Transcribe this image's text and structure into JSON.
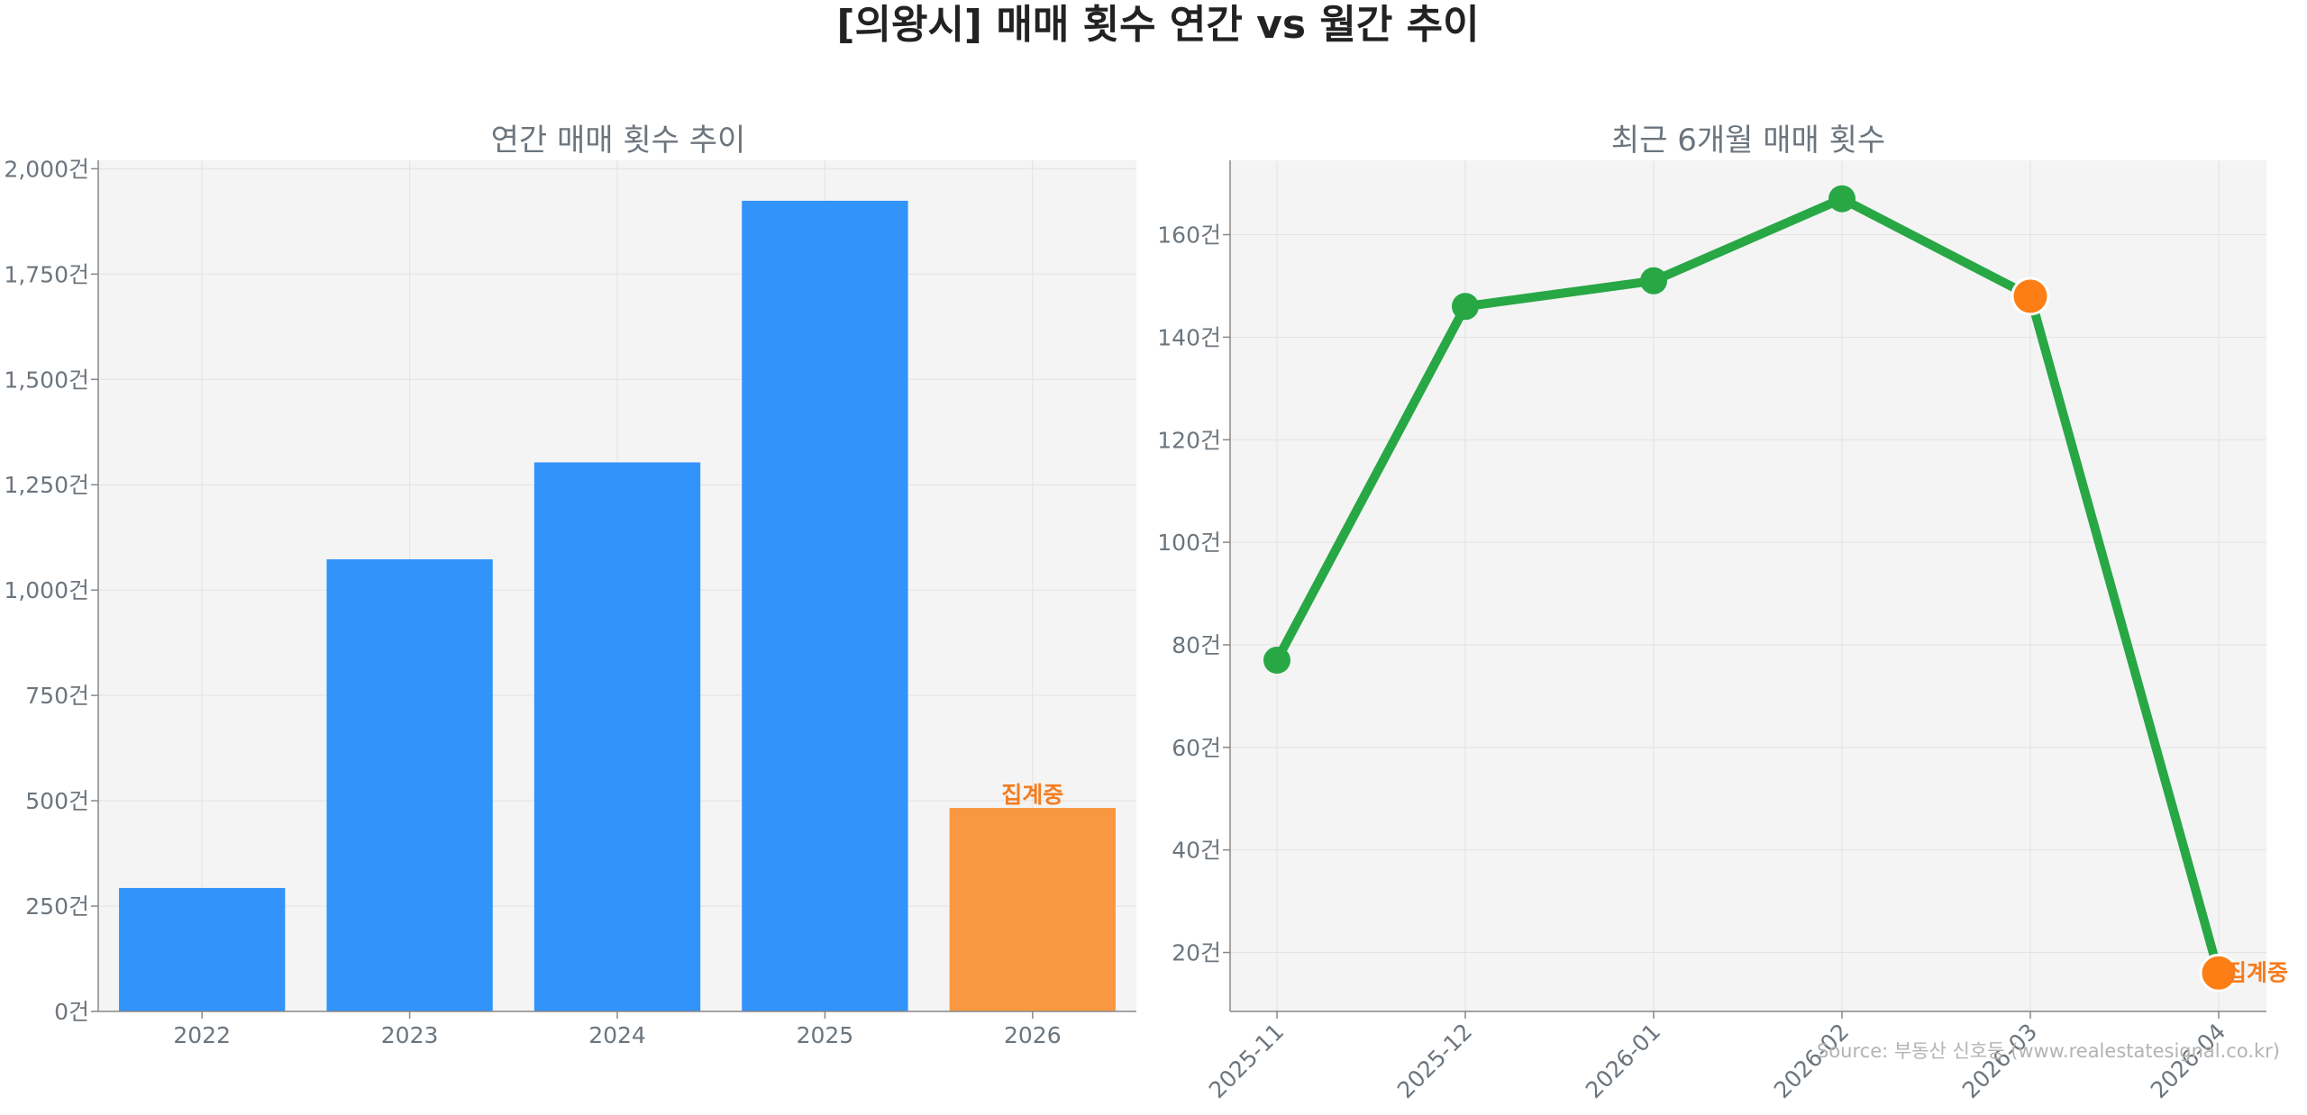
{
  "suptitle": "[의왕시] 매매 횟수 연간 vs 월간 추이",
  "source": "Source: 부동산 신호등 (www.realestatesignal.co.kr)",
  "colors": {
    "bar": "#3293fb",
    "bar_pending": "#f99841",
    "line": "#28a745",
    "pending_marker": "#fd7e14",
    "pending_text": "#f57c1f",
    "plot_bg": "#f4f4f4",
    "text_muted": "#6c757d",
    "title": "#222222"
  },
  "chart_data": [
    {
      "type": "bar",
      "title": "연간 매매 횟수 추이",
      "categories": [
        "2022",
        "2023",
        "2024",
        "2025",
        "2026"
      ],
      "values": [
        293,
        1073,
        1303,
        1924,
        483
      ],
      "pending_index": 4,
      "annotation": "집계중",
      "ylim": [
        0,
        2020
      ],
      "yticks": [
        0,
        250,
        500,
        750,
        1000,
        1250,
        1500,
        1750,
        2000
      ],
      "ytick_labels": [
        "0건",
        "250건",
        "500건",
        "750건",
        "1,000건",
        "1,250건",
        "1,500건",
        "1,750건",
        "2,000건"
      ],
      "grid": true
    },
    {
      "type": "line",
      "title": "최근 6개월 매매 횟수",
      "x": [
        "2025-11",
        "2025-12",
        "2026-01",
        "2026-02",
        "2026-03",
        "2026-04"
      ],
      "values": [
        77,
        146,
        151,
        167,
        148,
        16
      ],
      "pending_indices": [
        4,
        5
      ],
      "annotation": "집계중",
      "ylim": [
        8.5,
        174.5
      ],
      "yticks": [
        20,
        40,
        60,
        80,
        100,
        120,
        140,
        160
      ],
      "ytick_labels": [
        "20건",
        "40건",
        "60건",
        "80건",
        "100건",
        "120건",
        "140건",
        "160건"
      ],
      "grid": true
    }
  ]
}
